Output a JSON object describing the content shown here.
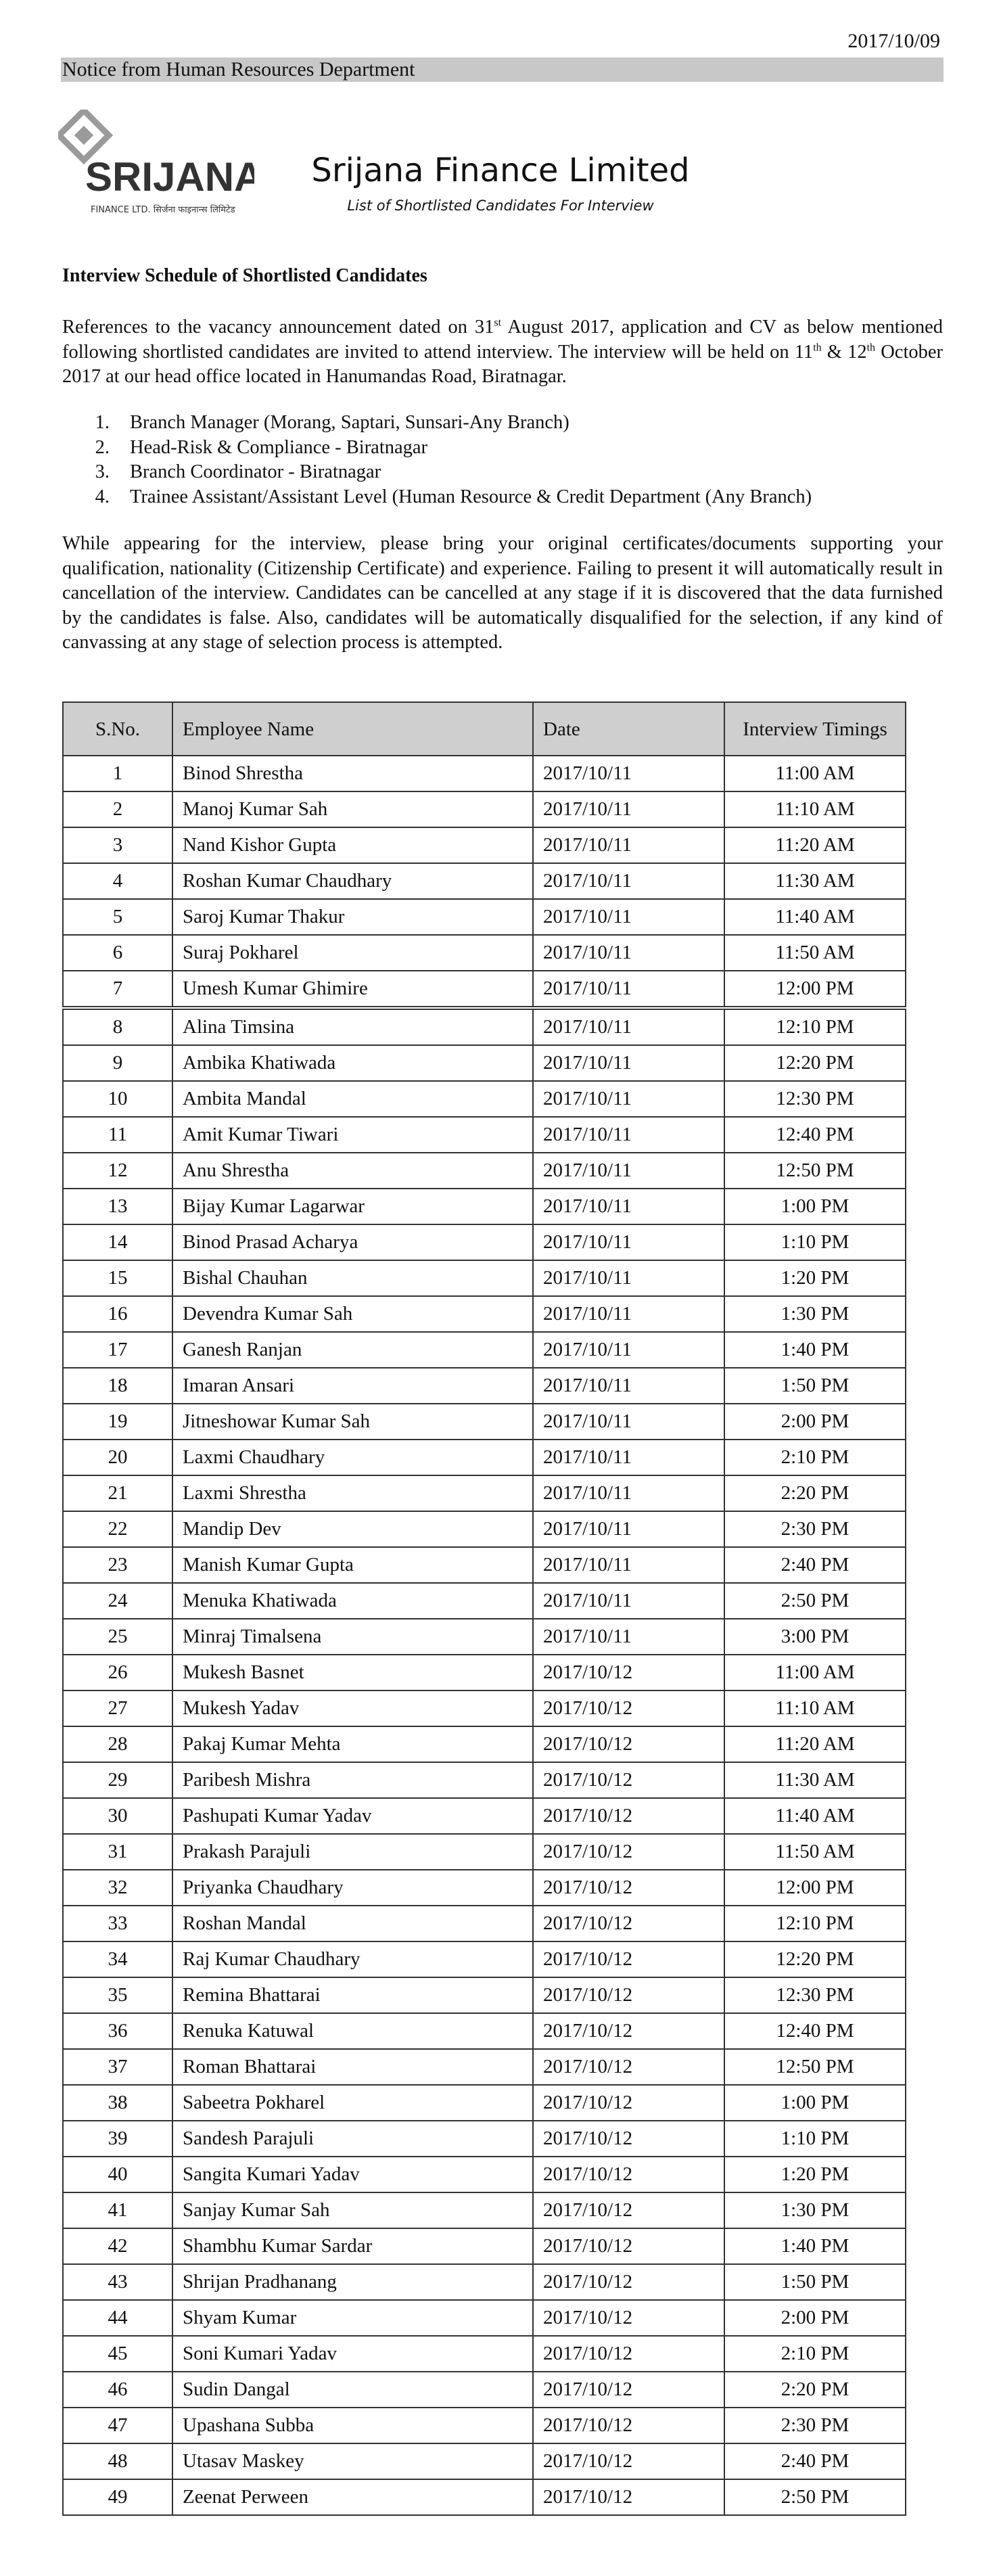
{
  "header": {
    "date": "2017/10/09",
    "notice": "Notice from Human Resources Department",
    "logo_name": "SRIJANA",
    "logo_sub": "FINANCE LTD. सिर्जना फाइनान्स लिमिटेड",
    "company": "Srijana Finance Limited",
    "subtitle": "List of Shortlisted Candidates For Interview"
  },
  "body": {
    "heading": "Interview Schedule of Shortlisted Candidates",
    "paragraph1": [
      "References to the vacancy announcement dated on 31",
      "st",
      " August 2017, application and CV as below mentioned following shortlisted candidates are invited to attend interview. The interview will be held on 11",
      "th",
      " & 12",
      "th",
      " October 2017 at our head office located in Hanumandas Road, Biratnagar."
    ],
    "positions": [
      "Branch Manager (Morang, Saptari, Sunsari-Any Branch)",
      "Head-Risk & Compliance - Biratnagar",
      "Branch Coordinator - Biratnagar",
      "Trainee Assistant/Assistant Level (Human Resource & Credit Department (Any Branch)"
    ],
    "paragraph2": "While appearing for the interview, please bring your original certificates/documents supporting your qualification, nationality (Citizenship Certificate) and experience. Failing to present it will automatically result in cancellation of the interview. Candidates can be cancelled at any stage if it is discovered that the data furnished by the candidates is false. Also, candidates will be automatically disqualified for the selection, if any kind of canvassing at any stage of selection process is attempted."
  },
  "table": {
    "columns": [
      "S.No.",
      "Employee Name",
      "Date",
      "Interview Timings"
    ],
    "rows": [
      [
        1,
        "Binod Shrestha",
        "2017/10/11",
        "11:00 AM"
      ],
      [
        2,
        "Manoj Kumar Sah",
        "2017/10/11",
        "11:10 AM"
      ],
      [
        3,
        "Nand Kishor Gupta",
        "2017/10/11",
        "11:20 AM"
      ],
      [
        4,
        "Roshan Kumar Chaudhary",
        "2017/10/11",
        "11:30 AM"
      ],
      [
        5,
        "Saroj Kumar Thakur",
        "2017/10/11",
        "11:40 AM"
      ],
      [
        6,
        "Suraj Pokharel",
        "2017/10/11",
        "11:50 AM"
      ],
      [
        7,
        "Umesh Kumar Ghimire",
        "2017/10/11",
        "12:00 PM"
      ],
      [
        8,
        "Alina Timsina",
        "2017/10/11",
        "12:10 PM"
      ],
      [
        9,
        "Ambika Khatiwada",
        "2017/10/11",
        "12:20 PM"
      ],
      [
        10,
        "Ambita Mandal",
        "2017/10/11",
        "12:30 PM"
      ],
      [
        11,
        "Amit Kumar Tiwari",
        "2017/10/11",
        "12:40 PM"
      ],
      [
        12,
        "Anu Shrestha",
        "2017/10/11",
        "12:50 PM"
      ],
      [
        13,
        "Bijay Kumar Lagarwar",
        "2017/10/11",
        "1:00 PM"
      ],
      [
        14,
        "Binod Prasad Acharya",
        "2017/10/11",
        "1:10 PM"
      ],
      [
        15,
        "Bishal Chauhan",
        "2017/10/11",
        "1:20 PM"
      ],
      [
        16,
        "Devendra Kumar Sah",
        "2017/10/11",
        "1:30 PM"
      ],
      [
        17,
        "Ganesh Ranjan",
        "2017/10/11",
        "1:40 PM"
      ],
      [
        18,
        "Imaran Ansari",
        "2017/10/11",
        "1:50 PM"
      ],
      [
        19,
        "Jitneshowar Kumar Sah",
        "2017/10/11",
        "2:00 PM"
      ],
      [
        20,
        "Laxmi Chaudhary",
        "2017/10/11",
        "2:10 PM"
      ],
      [
        21,
        "Laxmi Shrestha",
        "2017/10/11",
        "2:20 PM"
      ],
      [
        22,
        "Mandip Dev",
        "2017/10/11",
        "2:30 PM"
      ],
      [
        23,
        "Manish Kumar Gupta",
        "2017/10/11",
        "2:40 PM"
      ],
      [
        24,
        "Menuka Khatiwada",
        "2017/10/11",
        "2:50 PM"
      ],
      [
        25,
        "Minraj Timalsena",
        "2017/10/11",
        "3:00 PM"
      ],
      [
        26,
        "Mukesh Basnet",
        "2017/10/12",
        "11:00 AM"
      ],
      [
        27,
        "Mukesh Yadav",
        "2017/10/12",
        "11:10 AM"
      ],
      [
        28,
        "Pakaj Kumar Mehta",
        "2017/10/12",
        "11:20 AM"
      ],
      [
        29,
        "Paribesh Mishra",
        "2017/10/12",
        "11:30 AM"
      ],
      [
        30,
        "Pashupati Kumar Yadav",
        "2017/10/12",
        "11:40 AM"
      ],
      [
        31,
        "Prakash Parajuli",
        "2017/10/12",
        "11:50 AM"
      ],
      [
        32,
        "Priyanka Chaudhary",
        "2017/10/12",
        "12:00 PM"
      ],
      [
        33,
        "Roshan Mandal",
        "2017/10/12",
        "12:10 PM"
      ],
      [
        34,
        "Raj Kumar Chaudhary",
        "2017/10/12",
        "12:20 PM"
      ],
      [
        35,
        "Remina Bhattarai",
        "2017/10/12",
        "12:30 PM"
      ],
      [
        36,
        "Renuka Katuwal",
        "2017/10/12",
        "12:40 PM"
      ],
      [
        37,
        "Roman Bhattarai",
        "2017/10/12",
        "12:50 PM"
      ],
      [
        38,
        "Sabeetra Pokharel",
        "2017/10/12",
        "1:00 PM"
      ],
      [
        39,
        "Sandesh Parajuli",
        "2017/10/12",
        "1:10 PM"
      ],
      [
        40,
        "Sangita Kumari Yadav",
        "2017/10/12",
        "1:20 PM"
      ],
      [
        41,
        "Sanjay Kumar Sah",
        "2017/10/12",
        "1:30 PM"
      ],
      [
        42,
        "Shambhu Kumar Sardar",
        "2017/10/12",
        "1:40 PM"
      ],
      [
        43,
        "Shrijan Pradhanang",
        "2017/10/12",
        "1:50 PM"
      ],
      [
        44,
        "Shyam Kumar",
        "2017/10/12",
        "2:00 PM"
      ],
      [
        45,
        "Soni Kumari Yadav",
        "2017/10/12",
        "2:10 PM"
      ],
      [
        46,
        "Sudin Dangal",
        "2017/10/12",
        "2:20 PM"
      ],
      [
        47,
        "Upashana Subba",
        "2017/10/12",
        "2:30 PM"
      ],
      [
        48,
        "Utasav Maskey",
        "2017/10/12",
        "2:40 PM"
      ],
      [
        49,
        "Zeenat Perween",
        "2017/10/12",
        "2:50 PM"
      ]
    ]
  }
}
